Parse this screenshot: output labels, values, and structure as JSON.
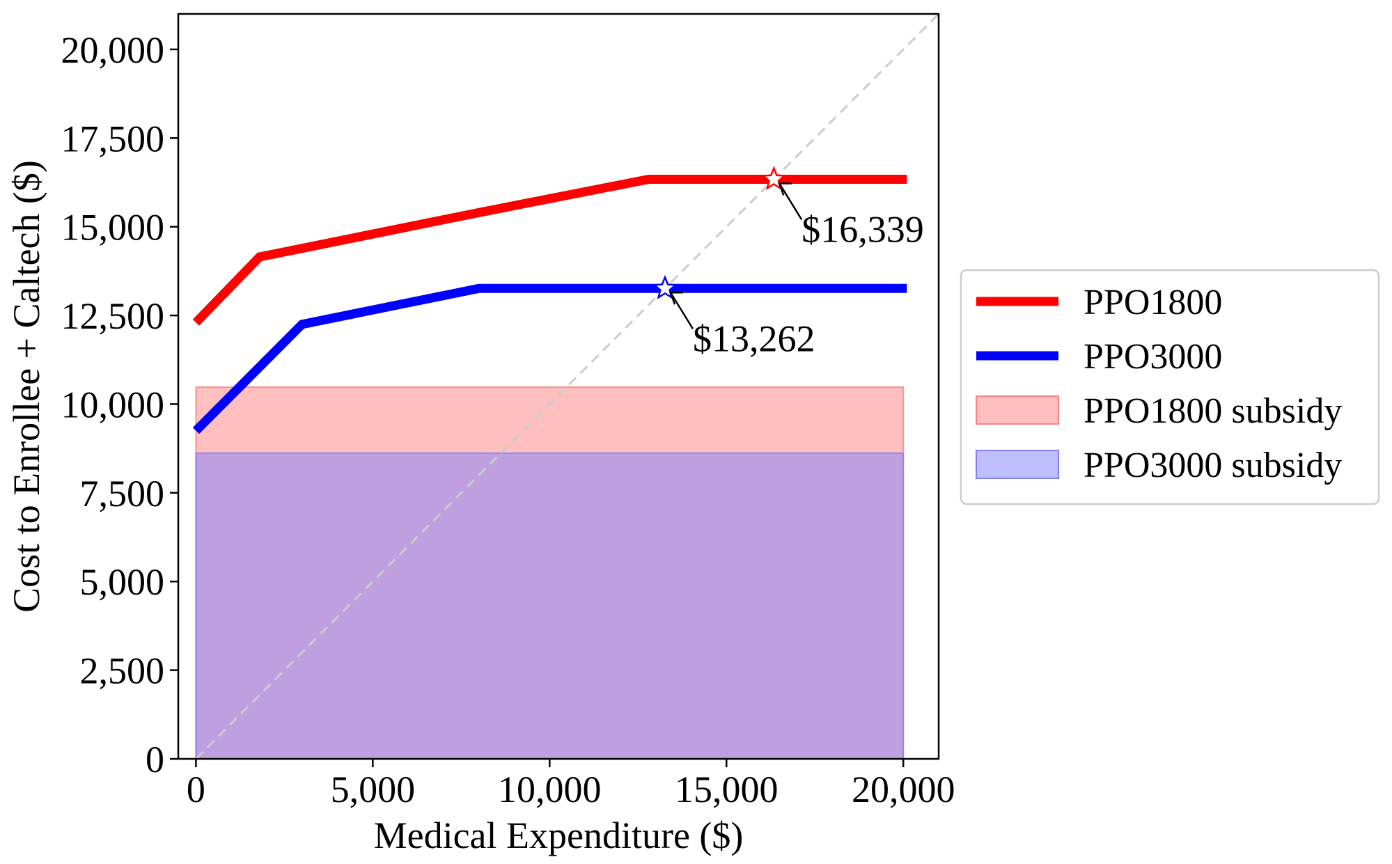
{
  "chart_data": {
    "type": "line",
    "title": "",
    "xlabel": "Medical Expenditure ($)",
    "ylabel": "Cost to Enrollee + Caltech ($)",
    "xlim": [
      -500,
      21000
    ],
    "ylim": [
      0,
      21000
    ],
    "xticks": [
      0,
      5000,
      10000,
      15000,
      20000
    ],
    "xtick_labels": [
      "0",
      "5,000",
      "10,000",
      "15,000",
      "20,000"
    ],
    "yticks": [
      0,
      2500,
      5000,
      7500,
      10000,
      12500,
      15000,
      17500,
      20000
    ],
    "ytick_labels": [
      "0",
      "2,500",
      "5,000",
      "7,500",
      "10,000",
      "12,500",
      "15,000",
      "17,500",
      "20,000"
    ],
    "grid": false,
    "legend_position": "outside-right",
    "series": [
      {
        "name": "PPO1800",
        "kind": "line",
        "color": "#ff0000",
        "x": [
          0,
          1800,
          8000,
          12800,
          20100
        ],
        "y": [
          12300,
          14150,
          15400,
          16339,
          16339
        ]
      },
      {
        "name": "PPO3000",
        "kind": "line",
        "color": "#0000ff",
        "x": [
          0,
          3000,
          8000,
          20100
        ],
        "y": [
          9250,
          12250,
          13262,
          13262
        ]
      },
      {
        "name": "PPO1800 subsidy",
        "kind": "area",
        "color": "#ff8080",
        "opacity": 0.5,
        "x": [
          0,
          20000
        ],
        "y": [
          10480,
          10480
        ]
      },
      {
        "name": "PPO3000 subsidy",
        "kind": "area",
        "color": "#8080ff",
        "opacity": 0.5,
        "x": [
          0,
          20000
        ],
        "y": [
          8620,
          8620
        ]
      }
    ],
    "reference_line": {
      "style": "dashed",
      "color": "#cccccc",
      "x": [
        0,
        21000
      ],
      "y": [
        0,
        21000
      ]
    },
    "annotations": [
      {
        "text": "$16,339",
        "x": 16339,
        "y": 16339,
        "color": "#ff0000",
        "marker": "star"
      },
      {
        "text": "$13,262",
        "x": 13262,
        "y": 13262,
        "color": "#0000ff",
        "marker": "star"
      }
    ]
  }
}
